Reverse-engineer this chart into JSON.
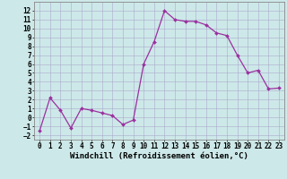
{
  "x": [
    0,
    1,
    2,
    3,
    4,
    5,
    6,
    7,
    8,
    9,
    10,
    11,
    12,
    13,
    14,
    15,
    16,
    17,
    18,
    19,
    20,
    21,
    22,
    23
  ],
  "y": [
    -1.5,
    2.2,
    0.8,
    -1.2,
    1.0,
    0.8,
    0.5,
    0.2,
    -0.8,
    -0.3,
    6.0,
    8.5,
    12.0,
    11.0,
    10.8,
    10.8,
    10.4,
    9.5,
    9.2,
    7.0,
    5.0,
    5.3,
    3.2,
    3.3
  ],
  "line_color": "#9b30a0",
  "marker_color": "#9b30a0",
  "bg_color": "#cde8e8",
  "grid_color": "#aaaacc",
  "xlabel": "Windchill (Refroidissement éolien,°C)",
  "xlim": [
    -0.5,
    23.5
  ],
  "ylim": [
    -2.5,
    13
  ],
  "yticks": [
    -2,
    -1,
    0,
    1,
    2,
    3,
    4,
    5,
    6,
    7,
    8,
    9,
    10,
    11,
    12
  ],
  "xticks": [
    0,
    1,
    2,
    3,
    4,
    5,
    6,
    7,
    8,
    9,
    10,
    11,
    12,
    13,
    14,
    15,
    16,
    17,
    18,
    19,
    20,
    21,
    22,
    23
  ],
  "tick_fontsize": 5.5,
  "label_fontsize": 6.5
}
